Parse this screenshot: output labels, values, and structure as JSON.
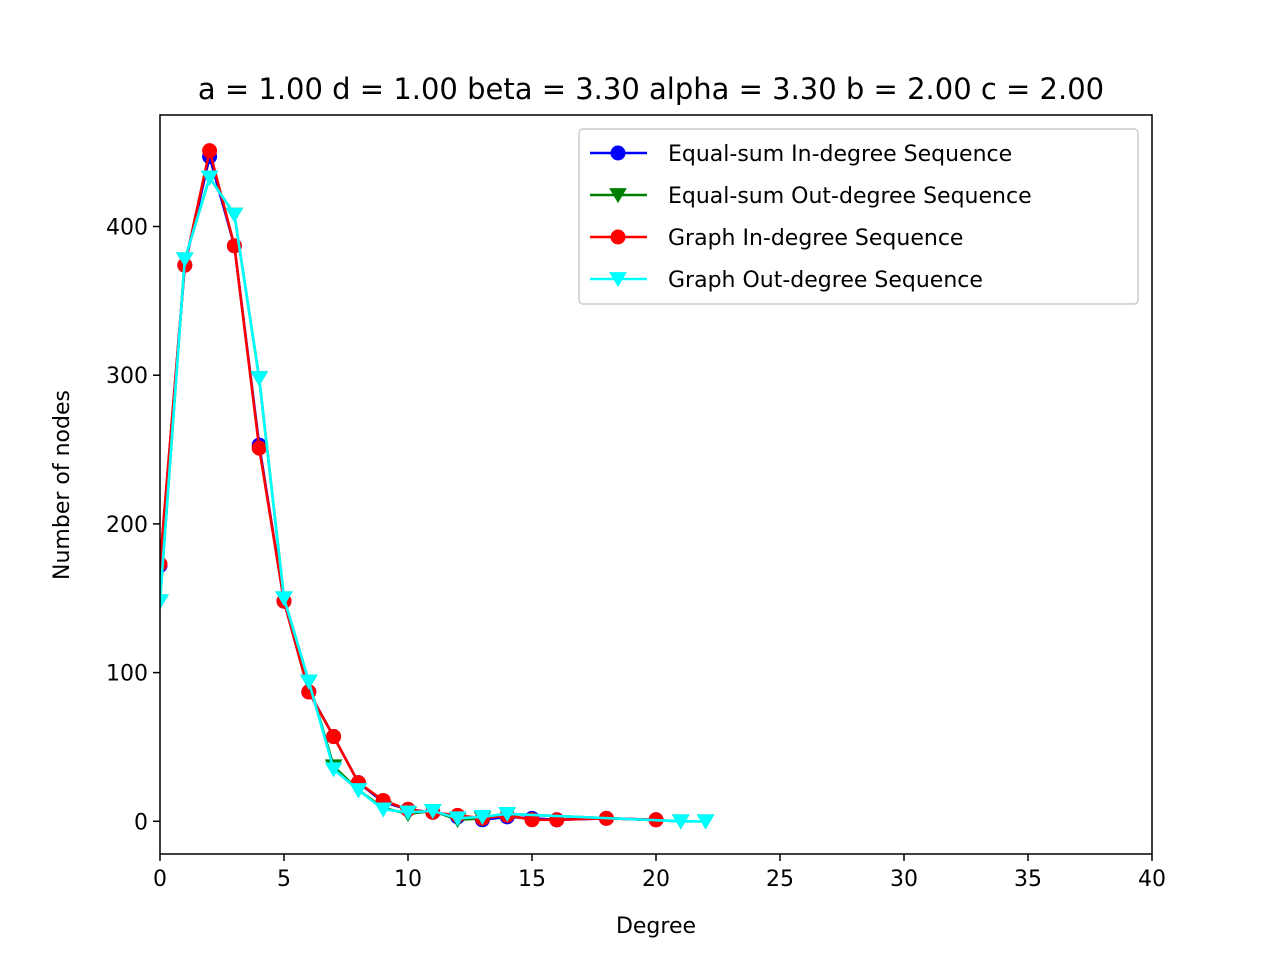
{
  "chart_data": {
    "type": "line",
    "title": "a = 1.00 d = 1.00 beta = 3.30 alpha = 3.30 b = 2.00 c = 2.00",
    "xlabel": "Degree",
    "ylabel": "Number of nodes",
    "xlim": [
      0,
      40
    ],
    "ylim": [
      -22,
      475
    ],
    "xticks": [
      0,
      5,
      10,
      15,
      20,
      25,
      30,
      35,
      40
    ],
    "yticks": [
      0,
      100,
      200,
      300,
      400
    ],
    "grid": false,
    "legend_position": "upper right",
    "series": [
      {
        "name": "Equal-sum In-degree Sequence",
        "color": "#0000ff",
        "marker": "circle",
        "x": [
          0,
          1,
          2,
          3,
          4,
          5,
          6,
          7,
          8,
          9,
          10,
          11,
          12,
          13,
          14,
          15,
          16,
          18,
          20
        ],
        "y": [
          172,
          374,
          447,
          387,
          253,
          148,
          87,
          57,
          26,
          13,
          8,
          6,
          3,
          1,
          3,
          2,
          1,
          2,
          1
        ]
      },
      {
        "name": "Equal-sum Out-degree Sequence",
        "color": "#008000",
        "marker": "triangle-down",
        "x": [
          0,
          1,
          2,
          3,
          4,
          5,
          6,
          7,
          8,
          9,
          10,
          11,
          12,
          13,
          14,
          21,
          22
        ],
        "y": [
          148,
          378,
          433,
          408,
          298,
          150,
          94,
          37,
          21,
          9,
          5,
          7,
          1,
          2,
          5,
          0,
          0
        ]
      },
      {
        "name": "Graph In-degree Sequence",
        "color": "#ff0000",
        "marker": "circle",
        "x": [
          0,
          1,
          2,
          3,
          4,
          5,
          6,
          7,
          8,
          9,
          10,
          11,
          12,
          13,
          14,
          15,
          16,
          18,
          20
        ],
        "y": [
          173,
          374,
          451,
          387,
          251,
          148,
          87,
          57,
          26,
          14,
          8,
          6,
          4,
          2,
          4,
          1,
          1,
          2,
          1
        ]
      },
      {
        "name": "Graph Out-degree Sequence",
        "color": "#00ffff",
        "marker": "triangle-down",
        "x": [
          0,
          1,
          2,
          3,
          4,
          5,
          6,
          7,
          8,
          9,
          10,
          11,
          12,
          13,
          14,
          21,
          22
        ],
        "y": [
          148,
          378,
          433,
          408,
          298,
          150,
          94,
          35,
          21,
          8,
          6,
          7,
          2,
          3,
          5,
          0,
          0
        ]
      }
    ]
  }
}
